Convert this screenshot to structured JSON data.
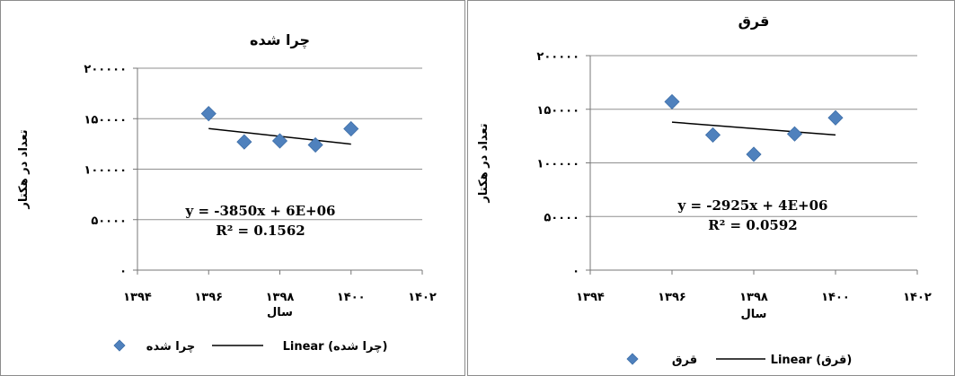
{
  "chart_data": [
    {
      "type": "scatter",
      "title": "چرا شده",
      "xlabel": "سال",
      "ylabel": "تعداد در هکتار",
      "xlim": [
        1394,
        1402
      ],
      "ylim": [
        0,
        200000
      ],
      "x_ticks": [
        1394,
        1396,
        1398,
        1400,
        1402
      ],
      "y_ticks": [
        0,
        50000,
        100000,
        150000,
        200000
      ],
      "x_tick_labels": [
        "۱۳۹۴",
        "۱۳۹۶",
        "۱۳۹۸",
        "۱۴۰۰",
        "۱۴۰۲"
      ],
      "y_tick_labels": [
        "۰",
        "۵۰۰۰۰",
        "۱۰۰۰۰۰",
        "۱۵۰۰۰۰",
        "۲۰۰۰۰۰"
      ],
      "grid": "horizontal",
      "series": [
        {
          "name": "چرا شده",
          "x": [
            1396,
            1397,
            1398,
            1399,
            1400
          ],
          "y": [
            155000,
            127000,
            128000,
            124000,
            140000
          ],
          "color": "#4f81bd"
        }
      ],
      "trendline": {
        "name": "Linear (چرا شده)",
        "x": [
          1396,
          1400
        ],
        "y": [
          140200,
          124800
        ]
      },
      "equation": "y = -3850x + 6E+06",
      "r_squared": "R² = 0.1562",
      "legend": [
        "چرا شده",
        "Linear (چرا شده)"
      ],
      "legend_position": "bottom"
    },
    {
      "type": "scatter",
      "title": "قرق",
      "xlabel": "سال",
      "ylabel": "تعداد در هکتار",
      "xlim": [
        1394,
        1402
      ],
      "ylim": [
        0,
        200000
      ],
      "x_ticks": [
        1394,
        1396,
        1398,
        1400,
        1402
      ],
      "y_ticks": [
        0,
        50000,
        100000,
        150000,
        200000
      ],
      "x_tick_labels": [
        "۱۳۹۴",
        "۱۳۹۶",
        "۱۳۹۸",
        "۱۴۰۰",
        "۱۴۰۲"
      ],
      "y_tick_labels": [
        "۰",
        "۵۰۰۰۰",
        "۱۰۰۰۰۰",
        "۱۵۰۰۰۰",
        "۲۰۰۰۰۰"
      ],
      "grid": "horizontal",
      "series": [
        {
          "name": "قرق",
          "x": [
            1396,
            1397,
            1398,
            1399,
            1400
          ],
          "y": [
            157000,
            126000,
            108000,
            127000,
            142000
          ],
          "color": "#4f81bd"
        }
      ],
      "trendline": {
        "name": "Linear (قرق)",
        "x": [
          1396,
          1400
        ],
        "y": [
          138000,
          126000
        ]
      },
      "equation": "y = -2925x + 4E+06",
      "r_squared": "R² = 0.0592",
      "legend": [
        "قرق",
        "Linear (قرق)"
      ],
      "legend_position": "bottom"
    }
  ]
}
